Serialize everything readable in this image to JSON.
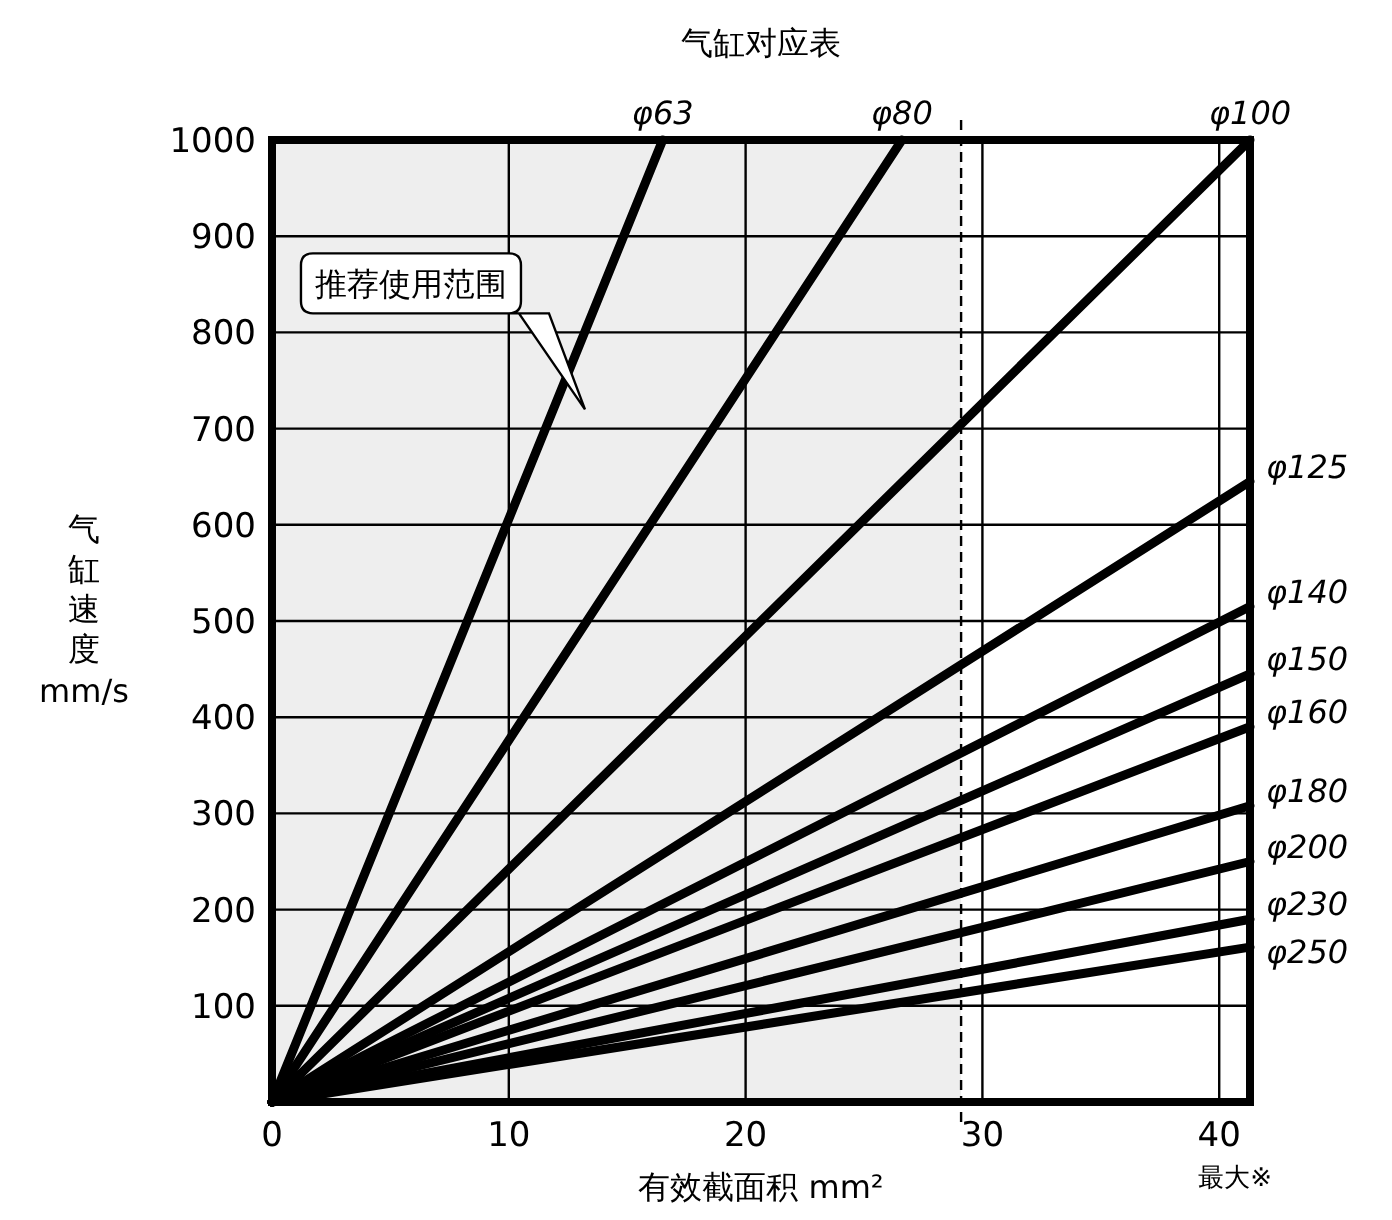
{
  "chart_data": {
    "type": "line",
    "title": "气缸对应表",
    "xlabel": "有效截面积 mm²",
    "ylabel": "气缸速度 mm/s",
    "xlim": [
      0,
      41.3
    ],
    "ylim": [
      0,
      1000
    ],
    "xticks": [
      0,
      10,
      20,
      30,
      40
    ],
    "yticks": [
      100,
      200,
      300,
      400,
      500,
      600,
      700,
      800,
      900,
      1000
    ],
    "grid": true,
    "marker": "none",
    "line_style": "solid",
    "series": [
      {
        "name": "φ63",
        "color": "#000000",
        "x": [
          0,
          16.5
        ],
        "values": [
          0,
          1000
        ]
      },
      {
        "name": "φ80",
        "color": "#000000",
        "x": [
          0,
          26.6
        ],
        "values": [
          0,
          1000
        ]
      },
      {
        "name": "φ100",
        "color": "#000000",
        "x": [
          0,
          41.3
        ],
        "values": [
          0,
          1000
        ]
      },
      {
        "name": "φ125",
        "color": "#000000",
        "x": [
          0,
          41.3
        ],
        "values": [
          0,
          645
        ]
      },
      {
        "name": "φ140",
        "color": "#000000",
        "x": [
          0,
          41.3
        ],
        "values": [
          0,
          515
        ]
      },
      {
        "name": "φ150",
        "color": "#000000",
        "x": [
          0,
          41.3
        ],
        "values": [
          0,
          445
        ]
      },
      {
        "name": "φ160",
        "color": "#000000",
        "x": [
          0,
          41.3
        ],
        "values": [
          0,
          390
        ]
      },
      {
        "name": "φ180",
        "color": "#000000",
        "x": [
          0,
          41.3
        ],
        "values": [
          0,
          308
        ]
      },
      {
        "name": "φ200",
        "color": "#000000",
        "x": [
          0,
          41.3
        ],
        "values": [
          0,
          250
        ]
      },
      {
        "name": "φ230",
        "color": "#000000",
        "x": [
          0,
          41.3
        ],
        "values": [
          0,
          190
        ]
      },
      {
        "name": "φ250",
        "color": "#000000",
        "x": [
          0,
          41.3
        ],
        "values": [
          0,
          161
        ]
      }
    ],
    "bands": [
      {
        "axis": "x",
        "from": 0,
        "to": 29.1,
        "color": "#eeeeee"
      }
    ],
    "ref_lines": [
      {
        "axis": "x",
        "value": 29.1,
        "line_style": "dashed",
        "color": "#000000"
      }
    ],
    "annotations": [
      "推荐使用范围",
      "最大※"
    ]
  }
}
